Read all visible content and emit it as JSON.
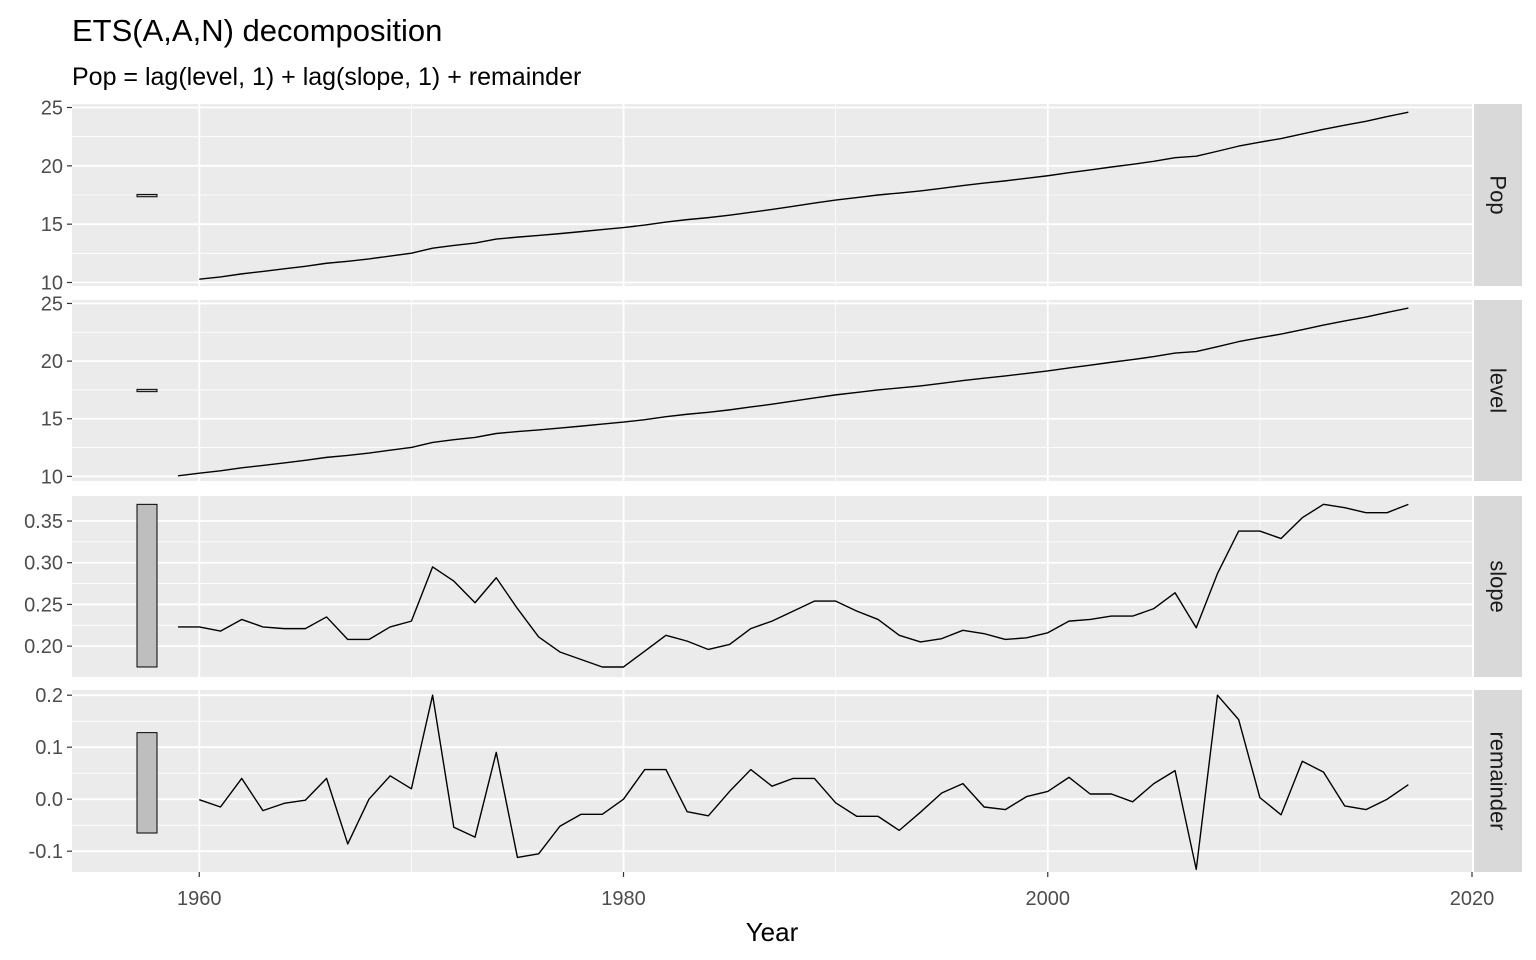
{
  "chart_data": {
    "type": "line",
    "title": "ETS(A,A,N) decomposition",
    "subtitle": "Pop = lag(level, 1) + lag(slope, 1) + remainder",
    "xlabel": "Year",
    "xlim": [
      1954,
      2020
    ],
    "x_ticks": [
      1960,
      1980,
      2000,
      2020
    ],
    "grid": true,
    "panels": [
      {
        "name": "Pop",
        "ylim": [
          9.7,
          25.3
        ],
        "y_ticks": [
          10,
          15,
          20,
          25
        ],
        "scale_bar": [
          17.35,
          17.55
        ],
        "x": [
          1960,
          1961,
          1962,
          1963,
          1964,
          1965,
          1966,
          1967,
          1968,
          1969,
          1970,
          1971,
          1972,
          1973,
          1974,
          1975,
          1976,
          1977,
          1978,
          1979,
          1980,
          1981,
          1982,
          1983,
          1984,
          1985,
          1986,
          1987,
          1988,
          1989,
          1990,
          1991,
          1992,
          1993,
          1994,
          1995,
          1996,
          1997,
          1998,
          1999,
          2000,
          2001,
          2002,
          2003,
          2004,
          2005,
          2006,
          2007,
          2008,
          2009,
          2010,
          2011,
          2012,
          2013,
          2014,
          2015,
          2016,
          2017
        ],
        "values": [
          10.28,
          10.48,
          10.74,
          10.95,
          11.17,
          11.39,
          11.65,
          11.82,
          12.02,
          12.27,
          12.51,
          12.94,
          13.18,
          13.38,
          13.72,
          13.89,
          14.03,
          14.19,
          14.36,
          14.54,
          14.71,
          14.92,
          15.18,
          15.39,
          15.56,
          15.77,
          16.02,
          16.26,
          16.53,
          16.81,
          17.07,
          17.28,
          17.5,
          17.67,
          17.85,
          18.07,
          18.31,
          18.52,
          18.71,
          18.93,
          19.15,
          19.41,
          19.65,
          19.9,
          20.13,
          20.39,
          20.7,
          20.83,
          21.25,
          21.69,
          22.03,
          22.34,
          22.73,
          23.13,
          23.48,
          23.82,
          24.22,
          24.6
        ]
      },
      {
        "name": "level",
        "ylim": [
          9.6,
          25.3
        ],
        "y_ticks": [
          10,
          15,
          20,
          25
        ],
        "scale_bar": [
          17.35,
          17.55
        ],
        "x": [
          1959,
          1960,
          1961,
          1962,
          1963,
          1964,
          1965,
          1966,
          1967,
          1968,
          1969,
          1970,
          1971,
          1972,
          1973,
          1974,
          1975,
          1976,
          1977,
          1978,
          1979,
          1980,
          1981,
          1982,
          1983,
          1984,
          1985,
          1986,
          1987,
          1988,
          1989,
          1990,
          1991,
          1992,
          1993,
          1994,
          1995,
          1996,
          1997,
          1998,
          1999,
          2000,
          2001,
          2002,
          2003,
          2004,
          2005,
          2006,
          2007,
          2008,
          2009,
          2010,
          2011,
          2012,
          2013,
          2014,
          2015,
          2016,
          2017
        ],
        "values": [
          10.05,
          10.28,
          10.48,
          10.74,
          10.95,
          11.17,
          11.39,
          11.65,
          11.82,
          12.02,
          12.27,
          12.51,
          12.94,
          13.18,
          13.38,
          13.72,
          13.89,
          14.03,
          14.19,
          14.36,
          14.54,
          14.71,
          14.92,
          15.18,
          15.39,
          15.56,
          15.77,
          16.02,
          16.26,
          16.53,
          16.81,
          17.07,
          17.28,
          17.5,
          17.67,
          17.85,
          18.07,
          18.31,
          18.52,
          18.71,
          18.93,
          19.15,
          19.41,
          19.65,
          19.9,
          20.13,
          20.39,
          20.7,
          20.83,
          21.25,
          21.69,
          22.03,
          22.34,
          22.73,
          23.13,
          23.48,
          23.82,
          24.22,
          24.6
        ]
      },
      {
        "name": "slope",
        "ylim": [
          0.163,
          0.38
        ],
        "y_ticks": [
          0.2,
          0.25,
          0.3,
          0.35
        ],
        "y_tick_labels": [
          "0.20",
          "0.25",
          "0.30",
          "0.35"
        ],
        "scale_bar": [
          0.175,
          0.37
        ],
        "x": [
          1959,
          1960,
          1961,
          1962,
          1963,
          1964,
          1965,
          1966,
          1967,
          1968,
          1969,
          1970,
          1971,
          1972,
          1973,
          1974,
          1975,
          1976,
          1977,
          1978,
          1979,
          1980,
          1981,
          1982,
          1983,
          1984,
          1985,
          1986,
          1987,
          1988,
          1989,
          1990,
          1991,
          1992,
          1993,
          1994,
          1995,
          1996,
          1997,
          1998,
          1999,
          2000,
          2001,
          2002,
          2003,
          2004,
          2005,
          2006,
          2007,
          2008,
          2009,
          2010,
          2011,
          2012,
          2013,
          2014,
          2015,
          2016,
          2017
        ],
        "values": [
          0.223,
          0.223,
          0.218,
          0.232,
          0.223,
          0.221,
          0.221,
          0.235,
          0.208,
          0.208,
          0.223,
          0.23,
          0.295,
          0.278,
          0.252,
          0.282,
          0.245,
          0.211,
          0.193,
          0.184,
          0.175,
          0.175,
          0.194,
          0.213,
          0.206,
          0.196,
          0.202,
          0.221,
          0.23,
          0.242,
          0.254,
          0.254,
          0.242,
          0.232,
          0.213,
          0.205,
          0.209,
          0.219,
          0.215,
          0.208,
          0.21,
          0.216,
          0.23,
          0.232,
          0.236,
          0.236,
          0.245,
          0.264,
          0.222,
          0.287,
          0.338,
          0.338,
          0.329,
          0.354,
          0.37,
          0.366,
          0.36,
          0.36,
          0.37
        ]
      },
      {
        "name": "remainder",
        "ylim": [
          -0.14,
          0.21
        ],
        "y_ticks": [
          -0.1,
          0.0,
          0.1,
          0.2
        ],
        "y_tick_labels": [
          "-0.1",
          "0.0",
          "0.1",
          "0.2"
        ],
        "scale_bar": [
          -0.065,
          0.128
        ],
        "x": [
          1960,
          1961,
          1962,
          1963,
          1964,
          1965,
          1966,
          1967,
          1968,
          1969,
          1970,
          1971,
          1972,
          1973,
          1974,
          1975,
          1976,
          1977,
          1978,
          1979,
          1980,
          1981,
          1982,
          1983,
          1984,
          1985,
          1986,
          1987,
          1988,
          1989,
          1990,
          1991,
          1992,
          1993,
          1994,
          1995,
          1996,
          1997,
          1998,
          1999,
          2000,
          2001,
          2002,
          2003,
          2004,
          2005,
          2006,
          2007,
          2008,
          2009,
          2010,
          2011,
          2012,
          2013,
          2014,
          2015,
          2016,
          2017
        ],
        "values": [
          -0.001,
          -0.015,
          0.04,
          -0.022,
          -0.008,
          -0.002,
          0.04,
          -0.086,
          0.0,
          0.045,
          0.02,
          0.2,
          -0.054,
          -0.073,
          0.09,
          -0.112,
          -0.105,
          -0.052,
          -0.029,
          -0.029,
          0.0,
          0.057,
          0.057,
          -0.024,
          -0.032,
          0.015,
          0.057,
          0.025,
          0.04,
          0.04,
          -0.007,
          -0.033,
          -0.033,
          -0.06,
          -0.025,
          0.012,
          0.03,
          -0.015,
          -0.02,
          0.005,
          0.015,
          0.042,
          0.01,
          0.01,
          -0.005,
          0.03,
          0.055,
          -0.135,
          0.2,
          0.153,
          0.003,
          -0.03,
          0.073,
          0.052,
          -0.013,
          -0.02,
          0.0,
          0.028
        ]
      }
    ]
  }
}
